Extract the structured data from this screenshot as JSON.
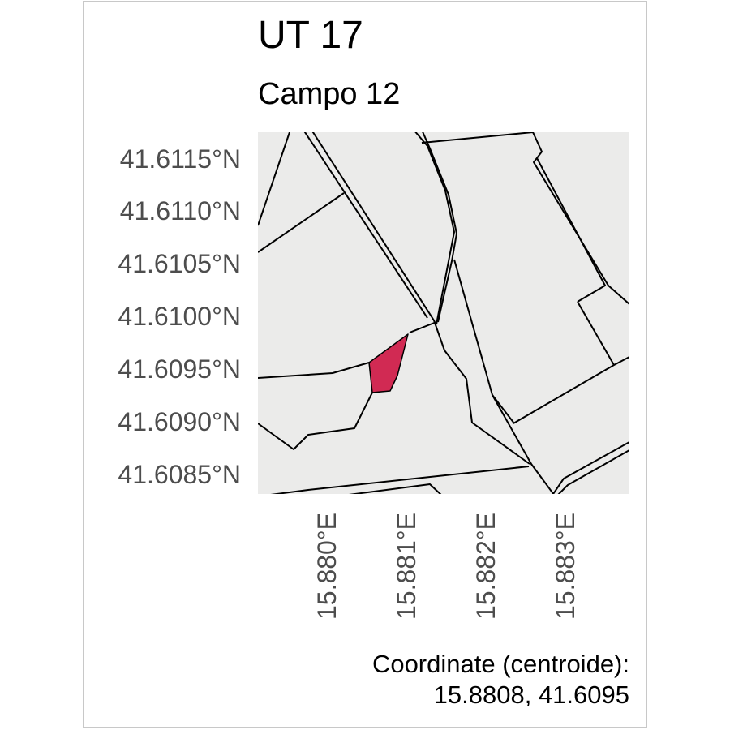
{
  "map": {
    "title": "UT 17",
    "subtitle": "Campo 12",
    "lat_labels": [
      "41.6115°N",
      "41.6110°N",
      "41.6105°N",
      "41.6100°N",
      "41.6095°N",
      "41.6090°N",
      "41.6085°N"
    ],
    "lon_labels": [
      "15.880°E",
      "15.881°E",
      "15.882°E",
      "15.883°E"
    ],
    "caption_line1": "Coordinate (centroide):",
    "caption_line2": "15.8808, 41.6095",
    "highlight_color": "#d12a53",
    "panel_color": "#ebebea"
  }
}
